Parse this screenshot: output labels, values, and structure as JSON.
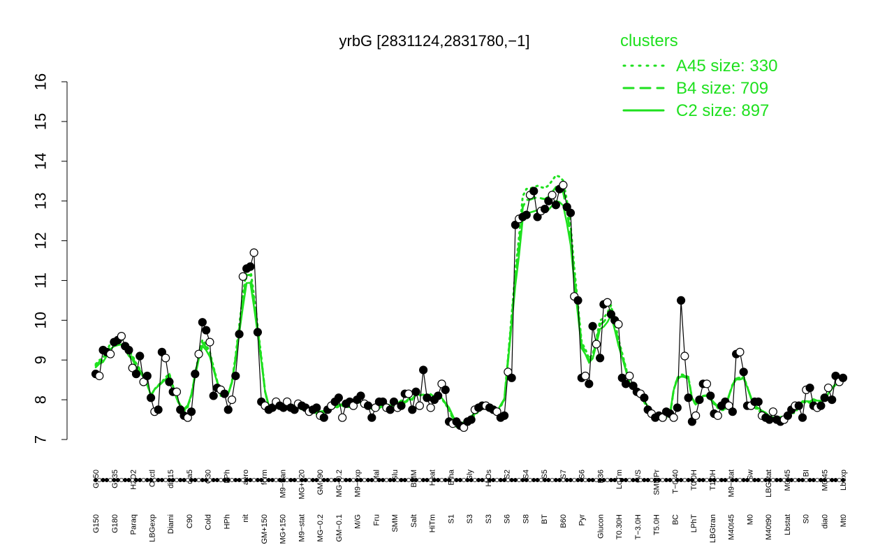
{
  "chart_data": {
    "type": "line",
    "title": "yrbG [2831124,2831780,−1]",
    "xlabel": "",
    "ylabel": "",
    "ylim": [
      7,
      16
    ],
    "yticks": [
      7,
      8,
      9,
      10,
      11,
      12,
      13,
      14,
      15,
      16
    ],
    "legend": {
      "title": "clusters",
      "placement": "top-right",
      "entries": [
        {
          "label": "A45 size: 330",
          "style": "dotted"
        },
        {
          "label": "B4 size: 709",
          "style": "dashed"
        },
        {
          "label": "C2 size: 897",
          "style": "solid"
        }
      ]
    },
    "x_labels_top": [
      "G150",
      "G135",
      "H2O2",
      "Oxctl",
      "dia15",
      "dia5",
      "C30",
      "LPh",
      "aero",
      "ferm",
      "M9−tran",
      "MG+120",
      "GM+90",
      "MG−0.2",
      "M9−exp",
      "Mal",
      "Glu",
      "BMM",
      "Heat",
      "Etha",
      "Gly",
      "HiOs",
      "S2",
      "S4",
      "S5",
      "S7",
      "S6",
      "B36",
      "LoTm",
      "G/S",
      "SMMPr",
      "T−0.40",
      "T0.0H",
      "T1.0H",
      "M9−stat",
      "Sw",
      "LBGstat",
      "M0t45",
      "BI",
      "M0t45",
      "Lbexp"
    ],
    "x_labels_bottom": [
      "G150",
      "G180",
      "Paraq",
      "LBGexp",
      "Diami",
      "C90",
      "Cold",
      "HPh",
      "nit",
      "GM+150",
      "MG+150",
      "M9−stat",
      "MG−0.2",
      "GM−0.1",
      "M/G",
      "Fru",
      "SMM",
      "Salt",
      "HiTm",
      "S1",
      "S3",
      "S3",
      "S6",
      "S8",
      "BT",
      "B60",
      "Pyr",
      "Glucon",
      "T0.30H",
      "T−3.0H",
      "T5.0H",
      "BC",
      "LPhT",
      "LBGtran",
      "M40t45",
      "M0",
      "M40t90",
      "Lbstat",
      "S0",
      "dia0",
      "Mt0"
    ],
    "colors": {
      "series_line": "#000000",
      "cluster": "#1ee01e"
    },
    "point_values": [
      8.65,
      8.6,
      9.25,
      9.2,
      9.15,
      9.45,
      9.5,
      9.6,
      9.35,
      9.25,
      8.8,
      8.65,
      9.1,
      8.45,
      8.6,
      8.05,
      7.7,
      7.75,
      9.2,
      9.05,
      8.45,
      8.2,
      8.2,
      7.75,
      7.6,
      7.55,
      7.7,
      8.65,
      9.15,
      9.95,
      9.75,
      9.45,
      8.1,
      8.3,
      8.25,
      8.15,
      7.75,
      8.0,
      8.6,
      9.65,
      11.1,
      11.3,
      11.35,
      11.7,
      9.7,
      7.95,
      7.85,
      7.75,
      7.8,
      7.95,
      7.85,
      7.8,
      7.95,
      7.8,
      7.75,
      7.9,
      7.85,
      7.8,
      7.7,
      7.75,
      7.8,
      7.6,
      7.55,
      7.75,
      7.85,
      7.95,
      8.05,
      7.55,
      7.9,
      7.95,
      7.85,
      8.0,
      8.1,
      7.9,
      7.85,
      7.55,
      7.8,
      7.95,
      7.95,
      7.8,
      7.75,
      7.95,
      7.8,
      7.85,
      8.15,
      8.15,
      7.75,
      8.2,
      7.85,
      8.75,
      8.05,
      7.8,
      8.0,
      8.1,
      8.4,
      8.25,
      7.45,
      7.4,
      7.45,
      7.35,
      7.3,
      7.45,
      7.5,
      7.75,
      7.8,
      7.85,
      7.85,
      7.8,
      7.75,
      7.7,
      7.55,
      7.6,
      8.7,
      8.55,
      12.4,
      12.55,
      12.6,
      12.65,
      13.15,
      13.25,
      12.6,
      12.75,
      12.8,
      13.0,
      13.15,
      12.9,
      13.3,
      13.4,
      12.85,
      12.7,
      10.6,
      10.5,
      8.55,
      8.6,
      8.4,
      9.85,
      9.4,
      9.05,
      10.4,
      10.45,
      10.15,
      10.0,
      9.9,
      8.55,
      8.4,
      8.6,
      8.35,
      8.2,
      8.15,
      8.05,
      7.75,
      7.65,
      7.55,
      7.6,
      7.55,
      7.7,
      7.65,
      7.55,
      7.8,
      10.5,
      9.1,
      8.05,
      7.45,
      7.6,
      8.0,
      8.4,
      8.4,
      8.1,
      7.65,
      7.6,
      7.85,
      7.95,
      7.85,
      7.7,
      9.15,
      9.2,
      8.7,
      7.85,
      7.85,
      7.95,
      7.95,
      7.6,
      7.55,
      7.5,
      7.7,
      7.5,
      7.45,
      7.5,
      7.6,
      7.75,
      7.85,
      7.85,
      7.55,
      8.25,
      8.3,
      7.85,
      7.8,
      7.85,
      8.05,
      8.3,
      8.0,
      8.6,
      8.45,
      8.55
    ]
  }
}
